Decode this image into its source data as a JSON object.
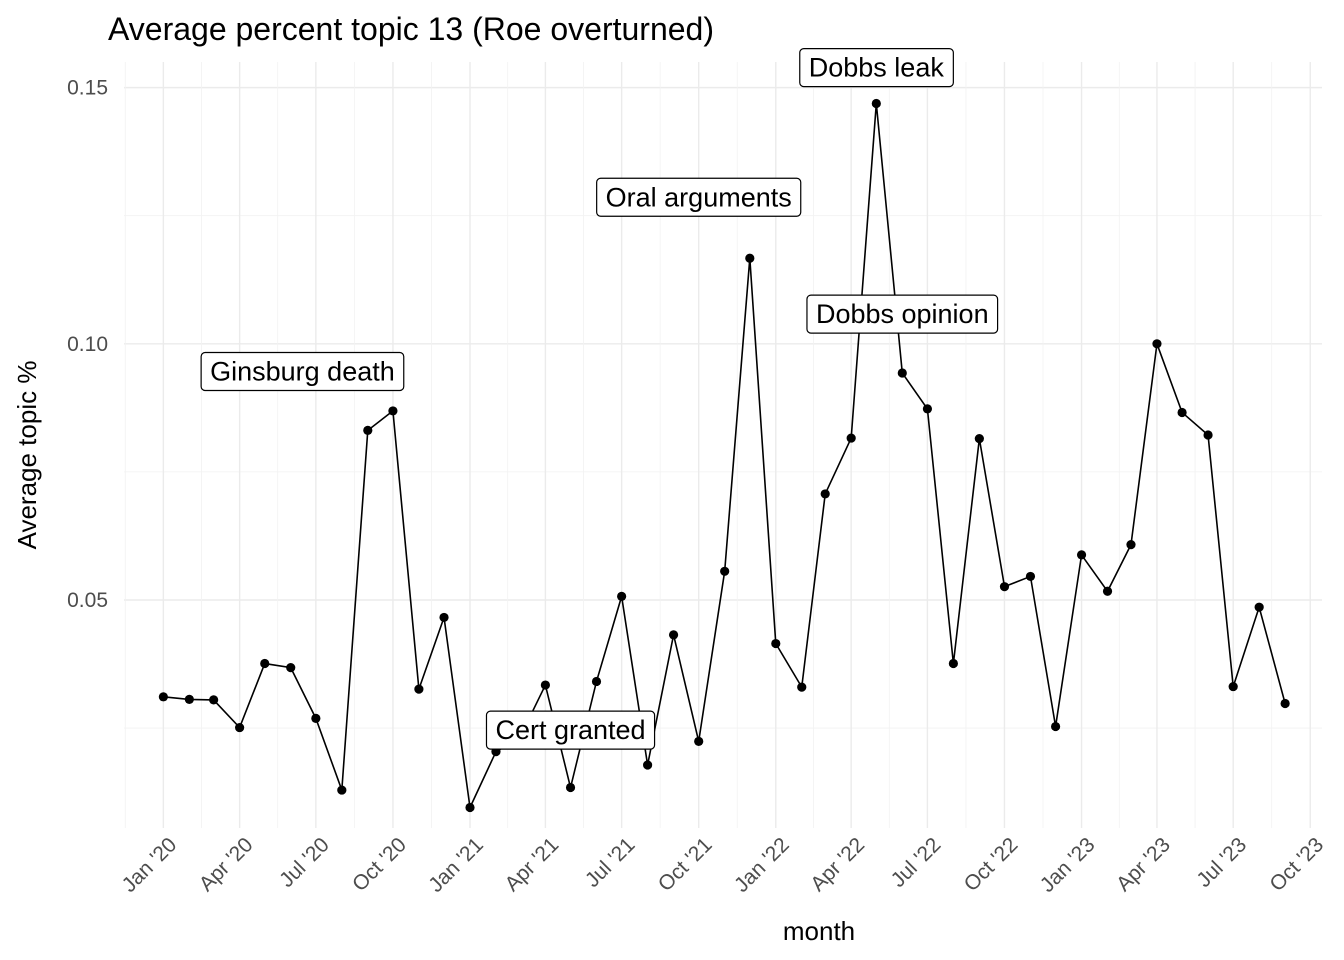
{
  "chart_data": {
    "type": "line",
    "title": "Average percent topic 13 (Roe overturned)",
    "xlabel": "month",
    "ylabel": "Average topic %",
    "x_domain": [
      "2019-11-15",
      "2023-10-15"
    ],
    "ylim": [
      0.0055,
      0.155
    ],
    "y_ticks": [
      0.05,
      0.1,
      0.15
    ],
    "y_tick_labels": [
      "0.05",
      "0.10",
      "0.15"
    ],
    "x_ticks": [
      {
        "date": "2020-01-01",
        "label": "Jan '20"
      },
      {
        "date": "2020-04-01",
        "label": "Apr '20"
      },
      {
        "date": "2020-07-01",
        "label": "Jul '20"
      },
      {
        "date": "2020-10-01",
        "label": "Oct '20"
      },
      {
        "date": "2021-01-01",
        "label": "Jan '21"
      },
      {
        "date": "2021-04-01",
        "label": "Apr '21"
      },
      {
        "date": "2021-07-01",
        "label": "Jul '21"
      },
      {
        "date": "2021-10-01",
        "label": "Oct '21"
      },
      {
        "date": "2022-01-01",
        "label": "Jan '22"
      },
      {
        "date": "2022-04-01",
        "label": "Apr '22"
      },
      {
        "date": "2022-07-01",
        "label": "Jul '22"
      },
      {
        "date": "2022-10-01",
        "label": "Oct '22"
      },
      {
        "date": "2023-01-01",
        "label": "Jan '23"
      },
      {
        "date": "2023-04-01",
        "label": "Apr '23"
      },
      {
        "date": "2023-07-01",
        "label": "Jul '23"
      },
      {
        "date": "2023-10-01",
        "label": "Oct '23"
      }
    ],
    "grid": true,
    "legend": "none",
    "series": [
      {
        "x": [
          "2020-01-01",
          "2020-02-01",
          "2020-03-01",
          "2020-04-01",
          "2020-05-01",
          "2020-06-01",
          "2020-07-01",
          "2020-08-01",
          "2020-09-01",
          "2020-10-01",
          "2020-11-01",
          "2020-12-01",
          "2021-01-01",
          "2021-02-01",
          "2021-03-01",
          "2021-04-01",
          "2021-05-01",
          "2021-06-01",
          "2021-07-01",
          "2021-08-01",
          "2021-09-01",
          "2021-10-01",
          "2021-11-01",
          "2021-12-01",
          "2022-01-01",
          "2022-02-01",
          "2022-03-01",
          "2022-04-01",
          "2022-05-01",
          "2022-06-01",
          "2022-07-01",
          "2022-08-01",
          "2022-09-01",
          "2022-10-01",
          "2022-11-01",
          "2022-12-01",
          "2023-01-01",
          "2023-02-01",
          "2023-03-01",
          "2023-04-01",
          "2023-05-01",
          "2023-06-01",
          "2023-07-01",
          "2023-08-01",
          "2023-09-01"
        ],
        "values": [
          0.0311,
          0.0306,
          0.0305,
          0.0251,
          0.0376,
          0.0368,
          0.0269,
          0.0129,
          0.0831,
          0.0869,
          0.0326,
          0.0466,
          0.0095,
          0.0204,
          0.023,
          0.0334,
          0.0134,
          0.0341,
          0.0507,
          0.0178,
          0.0432,
          0.0224,
          0.0556,
          0.1167,
          0.0415,
          0.033,
          0.0707,
          0.0816,
          0.1469,
          0.0943,
          0.0873,
          0.0376,
          0.0815,
          0.0526,
          0.0546,
          0.0253,
          0.0588,
          0.0517,
          0.0608,
          0.1,
          0.0866,
          0.0822,
          0.0331,
          0.0486,
          0.0298
        ]
      }
    ],
    "annotations": [
      {
        "text": "Ginsburg death",
        "date": "2020-06-15",
        "y": 0.0946
      },
      {
        "text": "Cert granted",
        "date": "2021-05-01",
        "y": 0.0246
      },
      {
        "text": "Oral arguments",
        "date": "2021-10-01",
        "y": 0.1286
      },
      {
        "text": "Dobbs leak",
        "date": "2022-05-01",
        "y": 0.1539
      },
      {
        "text": "Dobbs opinion",
        "date": "2022-06-01",
        "y": 0.1058
      }
    ]
  }
}
